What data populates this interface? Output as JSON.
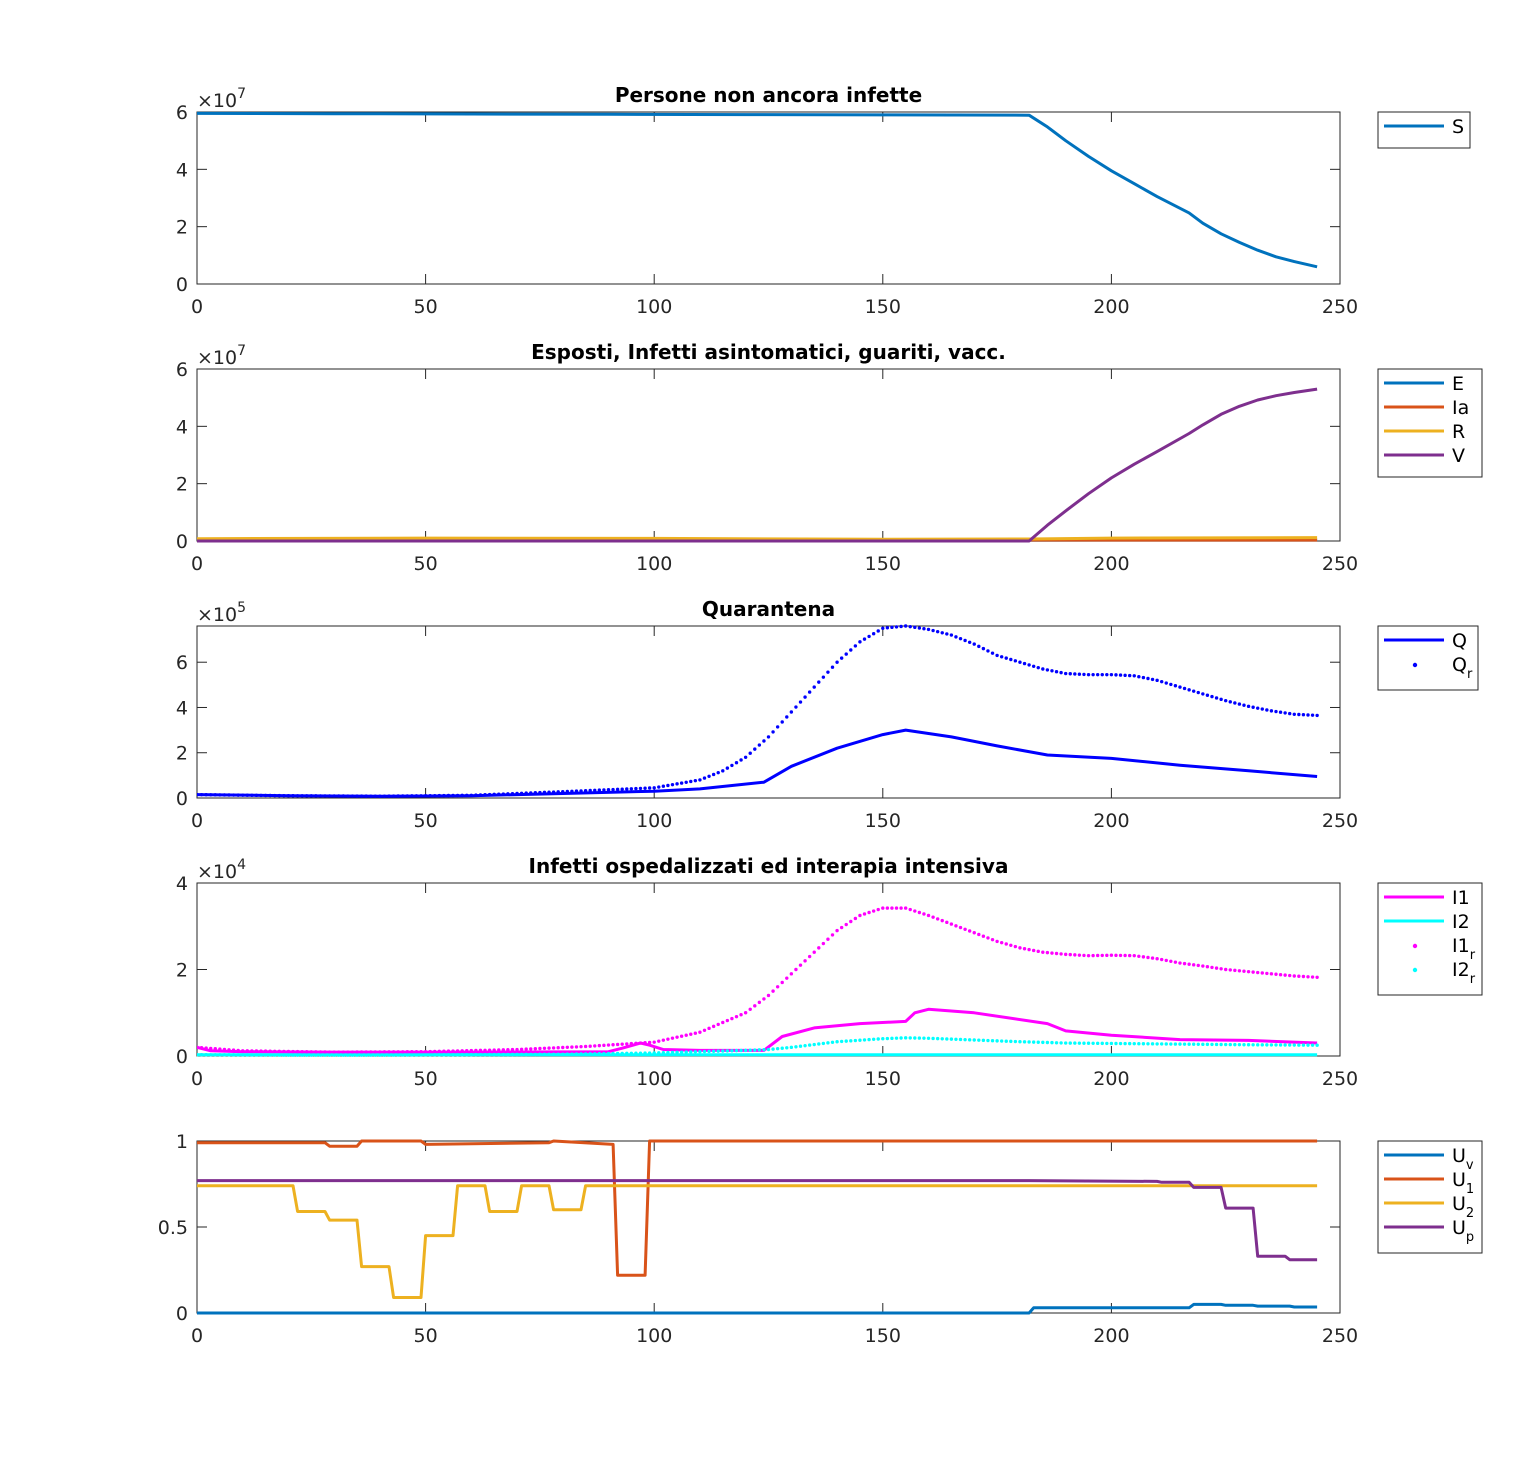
{
  "chart_data": [
    {
      "type": "line",
      "title": "Persone non ancora infette",
      "xlim": [
        0,
        250
      ],
      "ylim": [
        0,
        6
      ],
      "xticks": [
        "0",
        "50",
        "100",
        "150",
        "200",
        "250"
      ],
      "yticks": [
        "0",
        "2",
        "4",
        "6"
      ],
      "exponent": "7",
      "series": [
        {
          "name": "S",
          "sub": "",
          "color": "#0072BD",
          "style": "line",
          "x": [
            0,
            30,
            60,
            90,
            120,
            150,
            182,
            186,
            190,
            195,
            200,
            205,
            210,
            217,
            220,
            224,
            228,
            232,
            236,
            240,
            245
          ],
          "y": [
            5.95,
            5.94,
            5.93,
            5.92,
            5.91,
            5.9,
            5.89,
            5.48,
            5.0,
            4.45,
            3.95,
            3.5,
            3.05,
            2.48,
            2.12,
            1.75,
            1.45,
            1.18,
            0.95,
            0.78,
            0.6
          ]
        }
      ]
    },
    {
      "type": "line",
      "title": "Esposti, Infetti asintomatici, guariti, vacc.",
      "xlim": [
        0,
        250
      ],
      "ylim": [
        0,
        6
      ],
      "xticks": [
        "0",
        "50",
        "100",
        "150",
        "200",
        "250"
      ],
      "yticks": [
        "0",
        "2",
        "4",
        "6"
      ],
      "exponent": "7",
      "series": [
        {
          "name": "E",
          "sub": "",
          "color": "#0072BD",
          "style": "line",
          "x": [
            0,
            50,
            100,
            150,
            200,
            245
          ],
          "y": [
            0.02,
            0.03,
            0.03,
            0.02,
            0.03,
            0.03
          ]
        },
        {
          "name": "Ia",
          "sub": "",
          "color": "#D95319",
          "style": "line",
          "x": [
            0,
            50,
            100,
            150,
            200,
            245
          ],
          "y": [
            0.03,
            0.05,
            0.04,
            0.03,
            0.03,
            0.03
          ]
        },
        {
          "name": "R",
          "sub": "",
          "color": "#EDB120",
          "style": "line",
          "x": [
            0,
            50,
            100,
            150,
            182,
            200,
            245
          ],
          "y": [
            0.08,
            0.1,
            0.09,
            0.06,
            0.07,
            0.1,
            0.12
          ]
        },
        {
          "name": "V",
          "sub": "",
          "color": "#7E2F8E",
          "style": "line",
          "x": [
            0,
            182,
            186,
            190,
            195,
            200,
            205,
            210,
            217,
            220,
            224,
            228,
            232,
            236,
            240,
            245
          ],
          "y": [
            0,
            0,
            0.55,
            1.05,
            1.65,
            2.2,
            2.68,
            3.12,
            3.75,
            4.05,
            4.42,
            4.7,
            4.92,
            5.07,
            5.18,
            5.3
          ]
        }
      ]
    },
    {
      "type": "line",
      "title": "Quarantena",
      "xlim": [
        0,
        250
      ],
      "ylim": [
        0,
        7.6
      ],
      "xticks": [
        "0",
        "50",
        "100",
        "150",
        "200",
        "250"
      ],
      "yticks": [
        "0",
        "2",
        "4",
        "6"
      ],
      "exponent": "5",
      "series": [
        {
          "name": "Q",
          "sub": "",
          "color": "#0000FF",
          "style": "line",
          "x": [
            0,
            20,
            40,
            60,
            80,
            100,
            110,
            124,
            130,
            140,
            150,
            155,
            165,
            175,
            186,
            200,
            215,
            230,
            245
          ],
          "y": [
            0.15,
            0.1,
            0.08,
            0.1,
            0.2,
            0.3,
            0.4,
            0.7,
            1.4,
            2.2,
            2.8,
            3.0,
            2.7,
            2.3,
            1.9,
            1.75,
            1.45,
            1.2,
            0.95
          ]
        },
        {
          "name": "Q",
          "sub": "r",
          "color": "#0000FF",
          "style": "dots",
          "x": [
            0,
            20,
            40,
            60,
            80,
            100,
            110,
            115,
            120,
            125,
            130,
            135,
            140,
            145,
            150,
            155,
            160,
            165,
            170,
            175,
            180,
            185,
            190,
            195,
            200,
            205,
            210,
            215,
            220,
            225,
            230,
            235,
            240,
            245
          ],
          "y": [
            0.15,
            0.1,
            0.08,
            0.12,
            0.28,
            0.45,
            0.8,
            1.2,
            1.8,
            2.7,
            3.8,
            4.9,
            6.0,
            6.9,
            7.5,
            7.6,
            7.45,
            7.2,
            6.8,
            6.3,
            6.0,
            5.7,
            5.5,
            5.45,
            5.45,
            5.4,
            5.2,
            4.9,
            4.6,
            4.3,
            4.05,
            3.85,
            3.7,
            3.65
          ]
        }
      ]
    },
    {
      "type": "line",
      "title": "Infetti ospedalizzati ed interapia intensiva",
      "xlim": [
        0,
        250
      ],
      "ylim": [
        0,
        4
      ],
      "xticks": [
        "0",
        "50",
        "100",
        "150",
        "200",
        "250"
      ],
      "yticks": [
        "0",
        "2",
        "4"
      ],
      "exponent": "4",
      "series": [
        {
          "name": "I1",
          "sub": "",
          "color": "#FF00FF",
          "style": "line",
          "x": [
            0,
            3,
            10,
            30,
            60,
            90,
            93,
            97,
            99,
            102,
            110,
            124,
            128,
            135,
            145,
            155,
            157,
            160,
            170,
            186,
            190,
            200,
            215,
            230,
            245
          ],
          "y": [
            0.2,
            0.12,
            0.1,
            0.09,
            0.09,
            0.1,
            0.18,
            0.3,
            0.25,
            0.15,
            0.13,
            0.13,
            0.45,
            0.65,
            0.75,
            0.8,
            1.0,
            1.08,
            1.0,
            0.75,
            0.58,
            0.48,
            0.38,
            0.36,
            0.3
          ]
        },
        {
          "name": "I2",
          "sub": "",
          "color": "#00FFFF",
          "style": "line",
          "x": [
            0,
            245
          ],
          "y": [
            0.03,
            0.03
          ]
        },
        {
          "name": "I1",
          "sub": "r",
          "color": "#FF00FF",
          "style": "dots",
          "x": [
            0,
            10,
            30,
            50,
            70,
            85,
            100,
            110,
            120,
            125,
            130,
            135,
            140,
            145,
            150,
            155,
            160,
            165,
            170,
            175,
            180,
            185,
            190,
            195,
            200,
            205,
            210,
            215,
            220,
            225,
            230,
            235,
            240,
            245
          ],
          "y": [
            0.2,
            0.12,
            0.09,
            0.1,
            0.15,
            0.22,
            0.32,
            0.55,
            1.0,
            1.4,
            1.9,
            2.4,
            2.9,
            3.25,
            3.42,
            3.42,
            3.25,
            3.05,
            2.85,
            2.65,
            2.5,
            2.4,
            2.35,
            2.32,
            2.33,
            2.32,
            2.25,
            2.15,
            2.08,
            2.0,
            1.95,
            1.9,
            1.85,
            1.82
          ]
        },
        {
          "name": "I2",
          "sub": "r",
          "color": "#00FFFF",
          "style": "dots",
          "x": [
            0,
            20,
            40,
            60,
            80,
            100,
            110,
            120,
            125,
            130,
            140,
            150,
            155,
            160,
            170,
            180,
            190,
            200,
            210,
            220,
            230,
            245
          ],
          "y": [
            0.03,
            0.02,
            0.02,
            0.03,
            0.04,
            0.07,
            0.1,
            0.13,
            0.15,
            0.2,
            0.33,
            0.4,
            0.42,
            0.41,
            0.37,
            0.33,
            0.3,
            0.29,
            0.28,
            0.27,
            0.26,
            0.25
          ]
        }
      ]
    },
    {
      "type": "line",
      "title": "",
      "xlim": [
        0,
        250
      ],
      "ylim": [
        0,
        1
      ],
      "xticks": [
        "0",
        "50",
        "100",
        "150",
        "200",
        "250"
      ],
      "yticks": [
        "0",
        "0.5",
        "1"
      ],
      "exponent": "",
      "series": [
        {
          "name": "U",
          "sub": "v",
          "color": "#0072BD",
          "style": "line",
          "x": [
            0,
            182,
            183,
            210,
            217,
            218,
            224,
            225,
            231,
            232,
            239,
            240,
            245
          ],
          "y": [
            0,
            0,
            0.03,
            0.03,
            0.03,
            0.05,
            0.05,
            0.045,
            0.045,
            0.04,
            0.04,
            0.035,
            0.035
          ]
        },
        {
          "name": "U",
          "sub": "1",
          "color": "#D95319",
          "style": "line",
          "x": [
            0,
            28,
            29,
            35,
            36,
            49,
            50,
            77,
            78,
            91,
            92,
            98,
            99,
            245
          ],
          "y": [
            0.99,
            0.99,
            0.97,
            0.97,
            1.0,
            1.0,
            0.98,
            0.99,
            1.0,
            0.98,
            0.22,
            0.22,
            1.0,
            1.0
          ]
        },
        {
          "name": "U",
          "sub": "2",
          "color": "#EDB120",
          "style": "line",
          "x": [
            0,
            21,
            22,
            28,
            29,
            35,
            36,
            42,
            43,
            49,
            50,
            56,
            57,
            63,
            64,
            70,
            71,
            77,
            78,
            84,
            85,
            245
          ],
          "y": [
            0.74,
            0.74,
            0.59,
            0.59,
            0.54,
            0.54,
            0.27,
            0.27,
            0.09,
            0.09,
            0.45,
            0.45,
            0.74,
            0.74,
            0.59,
            0.59,
            0.74,
            0.74,
            0.6,
            0.6,
            0.74,
            0.74
          ]
        },
        {
          "name": "U",
          "sub": "p",
          "color": "#7E2F8E",
          "style": "line",
          "x": [
            0,
            182,
            210,
            211,
            217,
            218,
            224,
            225,
            231,
            232,
            238,
            239,
            245
          ],
          "y": [
            0.77,
            0.77,
            0.765,
            0.76,
            0.76,
            0.73,
            0.73,
            0.61,
            0.61,
            0.33,
            0.33,
            0.31,
            0.31
          ]
        }
      ]
    }
  ]
}
